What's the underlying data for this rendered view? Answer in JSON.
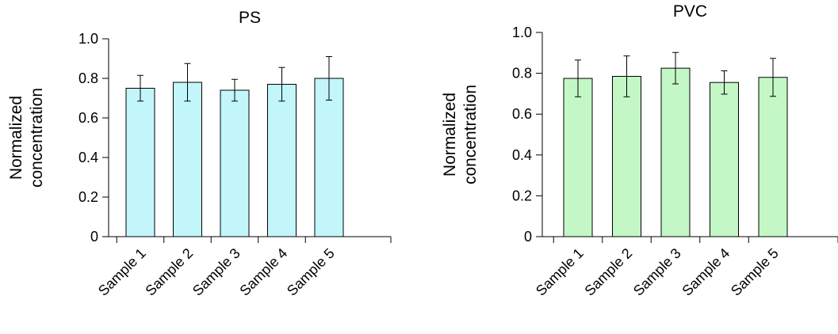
{
  "chart_data": [
    {
      "type": "bar",
      "title": "PS",
      "ylabel": [
        "Normalized",
        "concentration"
      ],
      "xlabel": "",
      "categories": [
        "Sample 1",
        "Sample 2",
        "Sample 3",
        "Sample 4",
        "Sample 5"
      ],
      "values": [
        0.75,
        0.78,
        0.74,
        0.77,
        0.8
      ],
      "errors": [
        0.065,
        0.095,
        0.055,
        0.085,
        0.11
      ],
      "ylim": [
        0,
        1.0
      ],
      "yticks": [
        0,
        0.2,
        0.4,
        0.6,
        0.8,
        1.0
      ],
      "ytick_labels": [
        "0",
        "0.2",
        "0.4",
        "0.6",
        "0.8",
        "1.0"
      ],
      "color": "#c2f6fb",
      "grid": false
    },
    {
      "type": "bar",
      "title": "PVC",
      "ylabel": [
        "Normalized",
        "concentration"
      ],
      "xlabel": "",
      "categories": [
        "Sample 1",
        "Sample 2",
        "Sample 3",
        "Sample 4",
        "Sample 5"
      ],
      "values": [
        0.775,
        0.785,
        0.825,
        0.755,
        0.78
      ],
      "errors": [
        0.09,
        0.1,
        0.077,
        0.057,
        0.093
      ],
      "ylim": [
        0,
        1.0
      ],
      "yticks": [
        0,
        0.2,
        0.4,
        0.6,
        0.8,
        1.0
      ],
      "ytick_labels": [
        "0",
        "0.2",
        "0.4",
        "0.6",
        "0.8",
        "1.0"
      ],
      "color": "#c4f7c6",
      "grid": false
    }
  ]
}
